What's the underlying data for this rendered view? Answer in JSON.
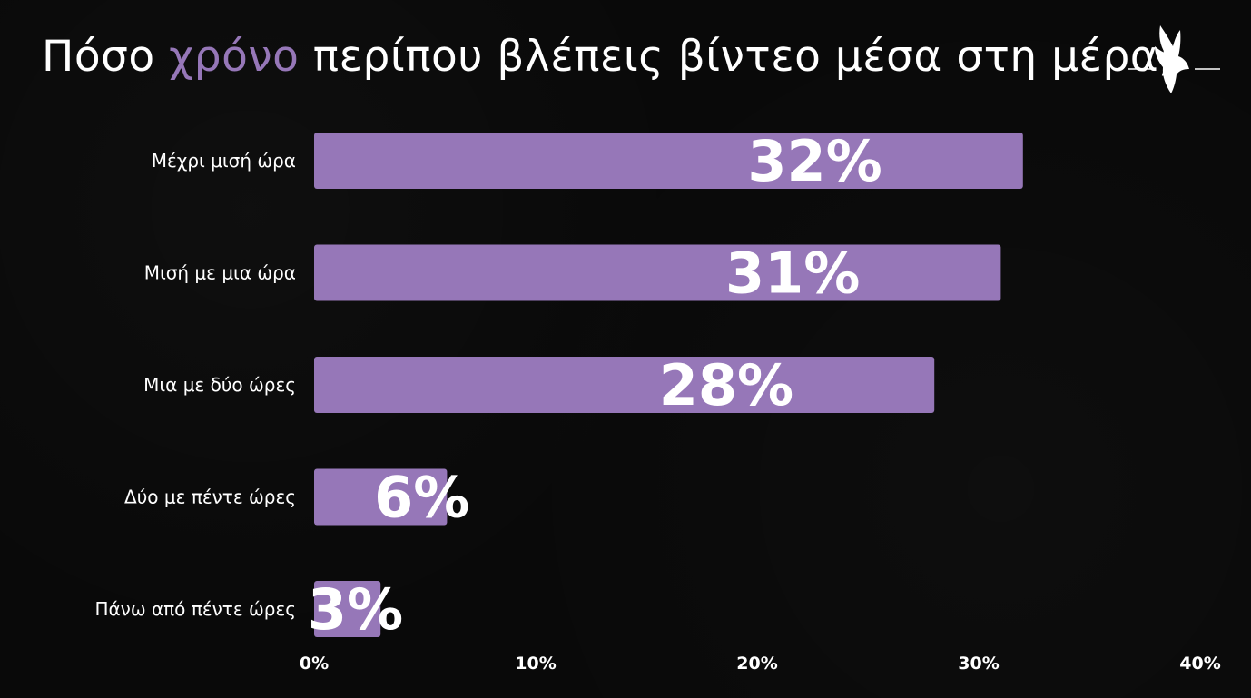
{
  "header": {
    "title_before": "Πόσο",
    "title_accent": "χρόνο",
    "title_after": "περίπου βλέπεις βίντεο μέσα στη μέρα;"
  },
  "logo": {
    "icon": "wing-icon"
  },
  "colors": {
    "background": "#090909",
    "bar": "#9677b8",
    "accent": "#9677b8",
    "text": "#ffffff"
  },
  "chart_data": {
    "type": "bar",
    "orientation": "horizontal",
    "title": "Πόσο χρόνο περίπου βλέπεις βίντεο μέσα στη μέρα;",
    "categories": [
      "Μέχρι μισή ώρα",
      "Μισή με μια ώρα",
      "Μια με δύο ώρες",
      "Δύο με πέντε ώρες",
      "Πάνω από πέντε ώρες"
    ],
    "values": [
      32,
      31,
      28,
      6,
      3
    ],
    "data_labels": [
      "32%",
      "31%",
      "28%",
      "6%",
      "3%"
    ],
    "xlim": [
      0,
      40
    ],
    "xticks": [
      "0%",
      "10%",
      "20%",
      "30%",
      "40%"
    ],
    "grid": false,
    "legend": "none"
  }
}
